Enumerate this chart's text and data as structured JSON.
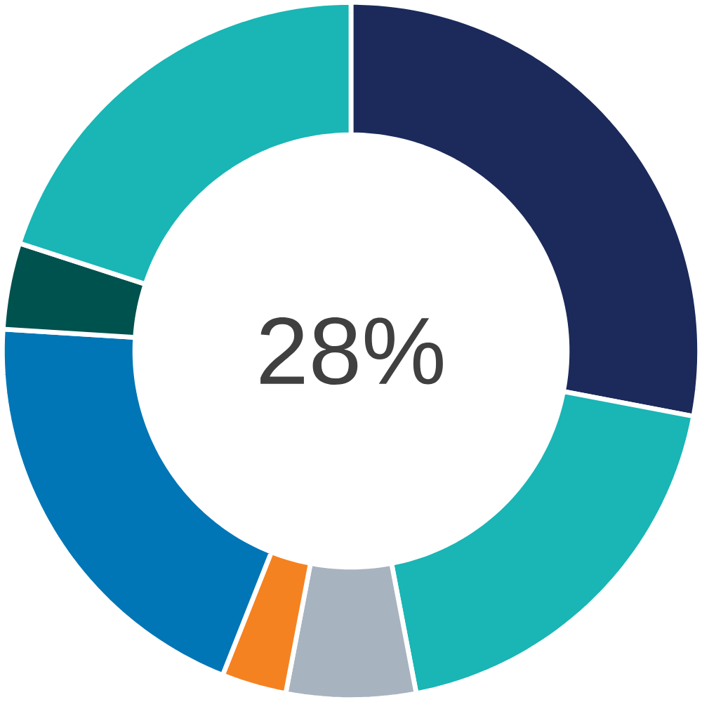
{
  "chart_data": {
    "type": "donut",
    "categories": [
      null,
      null,
      null,
      null,
      null,
      null,
      null
    ],
    "values": [
      28,
      19,
      6,
      3,
      20,
      4,
      20
    ],
    "colors": [
      "#1b2a5a",
      "#1ab5b5",
      "#a8b3c0",
      "#f58220",
      "#0076b6",
      "#00524f",
      "#1ab5b5"
    ],
    "annotations": [
      "28%"
    ]
  }
}
